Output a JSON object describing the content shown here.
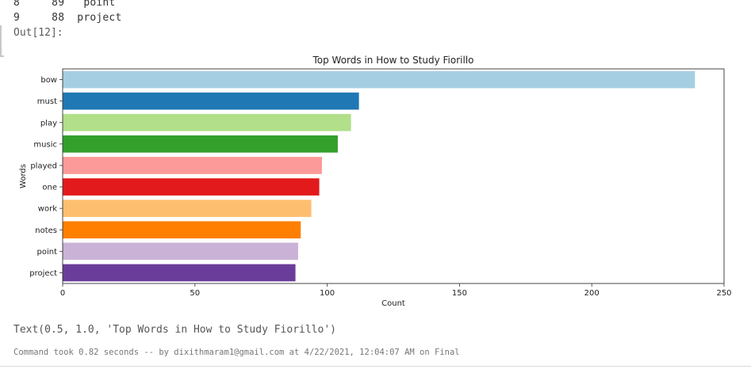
{
  "dataframe_tail": [
    {
      "index": "8",
      "count": "89",
      "word": "point"
    },
    {
      "index": "9",
      "count": "88",
      "word": "project"
    }
  ],
  "out_label": "Out[12]:",
  "chart_data": {
    "type": "bar",
    "orientation": "horizontal",
    "title": "Top Words in How to Study Fiorillo",
    "xlabel": "Count",
    "ylabel": "Words",
    "xlim": [
      0,
      250
    ],
    "xticks": [
      0,
      50,
      100,
      150,
      200,
      250
    ],
    "categories": [
      "bow",
      "must",
      "play",
      "music",
      "played",
      "one",
      "work",
      "notes",
      "point",
      "project"
    ],
    "values": [
      239,
      112,
      109,
      104,
      98,
      97,
      94,
      90,
      89,
      88
    ],
    "colors": [
      "#a6cee3",
      "#1f78b4",
      "#b2df8a",
      "#33a02c",
      "#fb9a99",
      "#e31a1c",
      "#fdbf6f",
      "#ff7f00",
      "#cab2d6",
      "#6a3d9a"
    ],
    "grid": false,
    "legend": "none"
  },
  "repr_text": "Text(0.5, 1.0, 'Top Words in How to Study Fiorillo')",
  "footer_text": "Command took 0.82 seconds -- by dixithmaram1@gmail.com at 4/22/2021, 12:04:07 AM on Final"
}
